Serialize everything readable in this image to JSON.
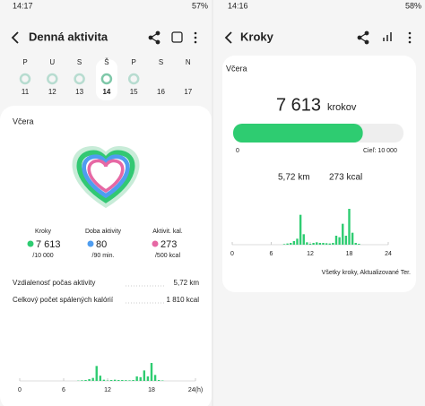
{
  "left": {
    "status_time": "14:17",
    "battery": "57%",
    "title": "Denná aktivita",
    "week_letters": [
      "P",
      "U",
      "S",
      "Š",
      "P",
      "S",
      "N"
    ],
    "week_dates": [
      "11",
      "12",
      "13",
      "14",
      "15",
      "16",
      "17"
    ],
    "section": "Včera",
    "metrics": [
      {
        "label": "Kroky",
        "value": "7 613",
        "goal": "/10 000"
      },
      {
        "label": "Doba aktivity",
        "value": "80",
        "goal": "/90 min."
      },
      {
        "label": "Aktivit. kal.",
        "value": "273",
        "goal": "/500 kcal"
      }
    ],
    "rows": [
      {
        "label": "Vzdialenosť počas aktivity",
        "value": "5,72 km"
      },
      {
        "label": "Celkový počet spálených kalórií",
        "value": "1 810 kcal"
      }
    ],
    "xticks": [
      0,
      6,
      12,
      18,
      {
        "value": 24,
        "label": "24(h)"
      }
    ]
  },
  "right": {
    "status_time": "14:16",
    "battery": "58%",
    "title": "Kroky",
    "section": "Včera",
    "steps": "7 613",
    "steps_unit": "krokov",
    "progress_start": "0",
    "goal": "Cieľ: 10 000",
    "distance": "5,72 km",
    "calories": "273 kcal",
    "xticks": [
      0,
      6,
      12,
      18,
      24
    ],
    "footer": "Všetky kroky, Aktualizované Ter."
  },
  "activity": {
    "xlim": [
      0,
      24
    ],
    "x": [
      8,
      8.5,
      9,
      9.5,
      10,
      10.5,
      11,
      11.5,
      12,
      12.5,
      13,
      13.5,
      14,
      14.5,
      15,
      15.5,
      16,
      16.5,
      17,
      17.5,
      18,
      18.5,
      19,
      19.5
    ],
    "values": [
      20,
      40,
      60,
      120,
      200,
      1000,
      350,
      80,
      30,
      60,
      80,
      60,
      60,
      50,
      40,
      60,
      300,
      250,
      700,
      300,
      1200,
      400,
      60,
      30
    ]
  }
}
